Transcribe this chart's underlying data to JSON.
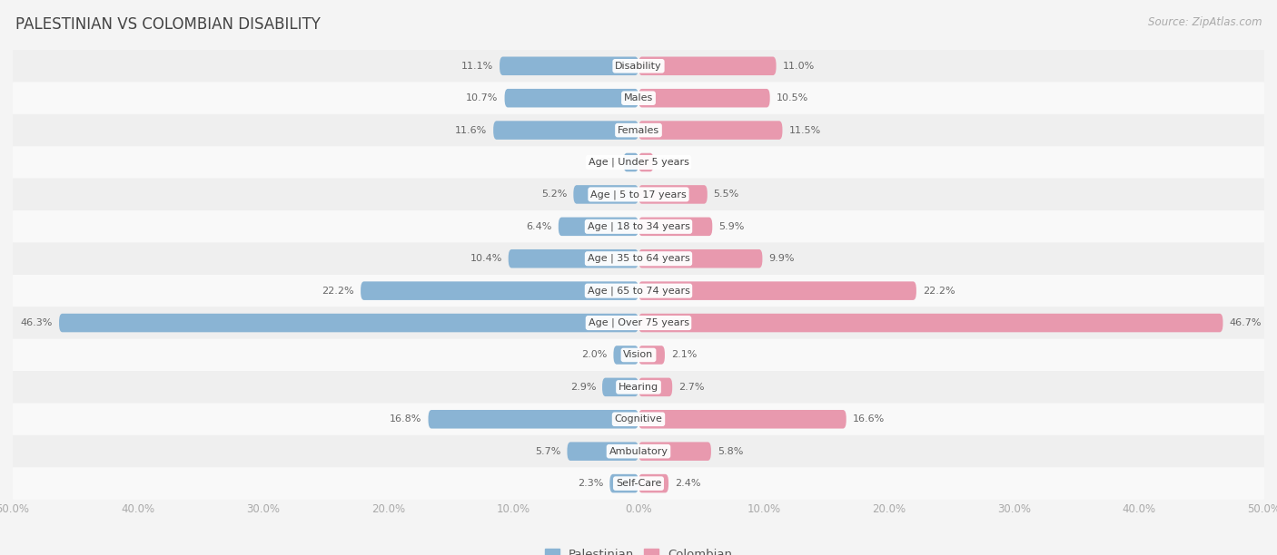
{
  "title": "PALESTINIAN VS COLOMBIAN DISABILITY",
  "source": "Source: ZipAtlas.com",
  "categories": [
    "Disability",
    "Males",
    "Females",
    "Age | Under 5 years",
    "Age | 5 to 17 years",
    "Age | 18 to 34 years",
    "Age | 35 to 64 years",
    "Age | 65 to 74 years",
    "Age | Over 75 years",
    "Vision",
    "Hearing",
    "Cognitive",
    "Ambulatory",
    "Self-Care"
  ],
  "palestinian": [
    11.1,
    10.7,
    11.6,
    1.2,
    5.2,
    6.4,
    10.4,
    22.2,
    46.3,
    2.0,
    2.9,
    16.8,
    5.7,
    2.3
  ],
  "colombian": [
    11.0,
    10.5,
    11.5,
    1.2,
    5.5,
    5.9,
    9.9,
    22.2,
    46.7,
    2.1,
    2.7,
    16.6,
    5.8,
    2.4
  ],
  "max_val": 50.0,
  "blue_color": "#8ab4d4",
  "pink_color": "#e899ae",
  "bg_color": "#f4f4f4",
  "row_bg_even": "#efefef",
  "row_bg_odd": "#f9f9f9",
  "label_fontsize": 8.0,
  "title_fontsize": 12,
  "source_fontsize": 8.5,
  "legend_fontsize": 9.5,
  "tick_fontsize": 8.5,
  "bar_height": 0.58,
  "label_color": "#666666",
  "title_color": "#444444"
}
